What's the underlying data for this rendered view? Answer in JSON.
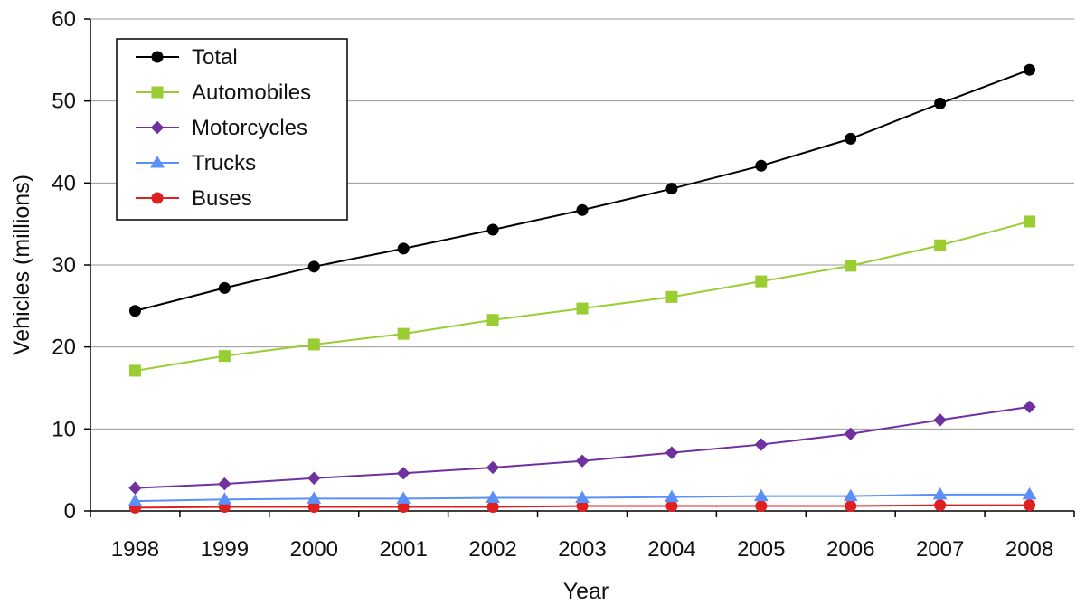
{
  "chart_data": {
    "type": "line",
    "title": "",
    "xlabel": "Year",
    "ylabel": "Vehicles (millions)",
    "ylim": [
      0,
      60
    ],
    "yticks": [
      0,
      10,
      20,
      30,
      40,
      50,
      60
    ],
    "grid": true,
    "legend_position": "top-left",
    "categories": [
      "1998",
      "1999",
      "2000",
      "2001",
      "2002",
      "2003",
      "2004",
      "2005",
      "2006",
      "2007",
      "2008"
    ],
    "series": [
      {
        "name": "Total",
        "color": "#000000",
        "marker": "circle",
        "values": [
          24.4,
          27.2,
          29.8,
          32.0,
          34.3,
          36.7,
          39.3,
          42.1,
          45.4,
          49.7,
          53.8
        ]
      },
      {
        "name": "Automobiles",
        "color": "#9acd32",
        "marker": "square",
        "values": [
          17.1,
          18.9,
          20.3,
          21.6,
          23.3,
          24.7,
          26.1,
          28.0,
          29.9,
          32.4,
          35.3
        ]
      },
      {
        "name": "Motorcycles",
        "color": "#7030a0",
        "marker": "diamond",
        "values": [
          2.8,
          3.3,
          4.0,
          4.6,
          5.3,
          6.1,
          7.1,
          8.1,
          9.4,
          11.1,
          12.7
        ]
      },
      {
        "name": "Trucks",
        "color": "#5b8ff9",
        "marker": "triangle",
        "values": [
          1.2,
          1.4,
          1.5,
          1.5,
          1.6,
          1.6,
          1.7,
          1.8,
          1.8,
          2.0,
          2.0
        ]
      },
      {
        "name": "Buses",
        "color": "#e02020",
        "marker": "circle",
        "values": [
          0.4,
          0.5,
          0.5,
          0.5,
          0.5,
          0.6,
          0.6,
          0.6,
          0.6,
          0.7,
          0.7
        ]
      }
    ]
  }
}
